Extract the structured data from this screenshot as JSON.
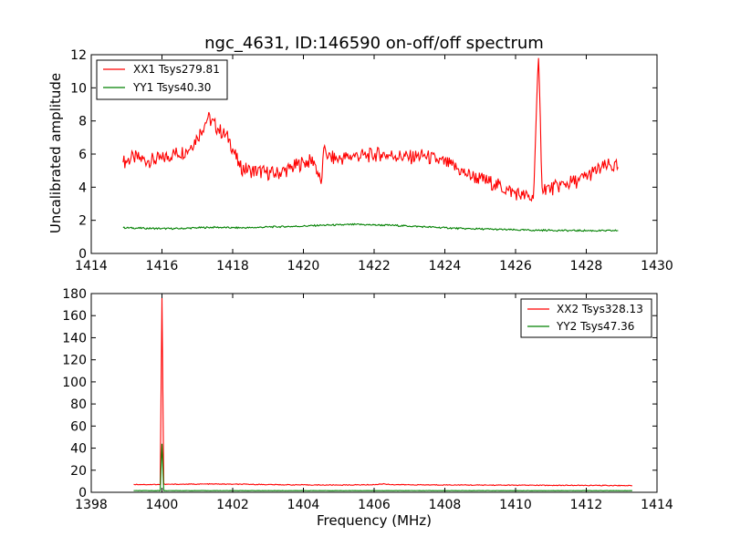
{
  "chart_data": [
    {
      "type": "line",
      "title": "ngc_4631, ID:146590 on-off/off spectrum",
      "xlabel": "",
      "ylabel": "Uncalibrated amplitude",
      "xlim": [
        1414,
        1430
      ],
      "ylim": [
        0,
        12
      ],
      "xticks": [
        "1414",
        "1416",
        "1418",
        "1420",
        "1422",
        "1424",
        "1426",
        "1428",
        "1430"
      ],
      "yticks": [
        "0",
        "2",
        "4",
        "6",
        "8",
        "10",
        "12"
      ],
      "legend_position": "top-left",
      "series": [
        {
          "name": "XX1 Tsys279.81",
          "color": "#ff0000",
          "x": [
            1414.9,
            1415.2,
            1415.6,
            1416.0,
            1416.3,
            1416.7,
            1417.0,
            1417.3,
            1417.6,
            1417.9,
            1418.2,
            1418.5,
            1418.9,
            1419.2,
            1419.6,
            1420.0,
            1420.3,
            1420.5,
            1420.6,
            1420.7,
            1421.0,
            1421.4,
            1421.8,
            1422.2,
            1422.6,
            1423.0,
            1423.4,
            1423.8,
            1424.2,
            1424.6,
            1425.0,
            1425.4,
            1425.8,
            1426.2,
            1426.5,
            1426.65,
            1426.75,
            1427.0,
            1427.4,
            1427.8,
            1428.2,
            1428.6,
            1428.9
          ],
          "y": [
            5.5,
            5.8,
            5.6,
            5.7,
            6.0,
            6.2,
            7.0,
            8.2,
            7.5,
            6.9,
            5.2,
            5.0,
            4.9,
            4.8,
            5.1,
            5.5,
            5.6,
            4.2,
            6.5,
            5.8,
            5.7,
            5.9,
            5.9,
            6.0,
            5.9,
            5.8,
            5.9,
            5.6,
            5.3,
            4.8,
            4.5,
            4.2,
            3.8,
            3.5,
            3.3,
            11.8,
            4.0,
            3.9,
            4.2,
            4.4,
            4.9,
            5.3,
            5.2
          ]
        },
        {
          "name": "YY1 Tsys40.30",
          "color": "#008000",
          "x": [
            1414.9,
            1415.5,
            1416.0,
            1416.5,
            1417.0,
            1417.5,
            1418.0,
            1418.5,
            1419.0,
            1419.5,
            1420.0,
            1420.5,
            1421.0,
            1421.5,
            1422.0,
            1422.5,
            1423.0,
            1423.5,
            1424.0,
            1424.5,
            1425.0,
            1425.5,
            1426.0,
            1426.5,
            1427.0,
            1427.5,
            1428.0,
            1428.5,
            1428.9
          ],
          "y": [
            1.55,
            1.52,
            1.5,
            1.5,
            1.55,
            1.58,
            1.55,
            1.55,
            1.6,
            1.62,
            1.65,
            1.7,
            1.72,
            1.75,
            1.72,
            1.7,
            1.65,
            1.6,
            1.55,
            1.5,
            1.48,
            1.45,
            1.42,
            1.4,
            1.4,
            1.38,
            1.38,
            1.37,
            1.38
          ]
        }
      ]
    },
    {
      "type": "line",
      "title": "",
      "xlabel": "Frequency (MHz)",
      "ylabel": "",
      "xlim": [
        1398,
        1414
      ],
      "ylim": [
        0,
        180
      ],
      "xticks": [
        "1398",
        "1400",
        "1402",
        "1404",
        "1406",
        "1408",
        "1410",
        "1412",
        "1414"
      ],
      "yticks": [
        "0",
        "20",
        "40",
        "60",
        "80",
        "100",
        "120",
        "140",
        "160",
        "180"
      ],
      "legend_position": "top-right",
      "series": [
        {
          "name": "XX2 Tsys328.13",
          "color": "#ff0000",
          "x": [
            1399.2,
            1399.6,
            1399.95,
            1400.0,
            1400.05,
            1400.5,
            1401.0,
            1401.5,
            1402.0,
            1402.5,
            1403.0,
            1403.5,
            1404.0,
            1404.5,
            1405.0,
            1405.5,
            1406.0,
            1406.25,
            1406.5,
            1407.0,
            1407.5,
            1408.0,
            1408.5,
            1409.0,
            1409.5,
            1410.0,
            1410.5,
            1411.0,
            1411.5,
            1412.0,
            1412.5,
            1413.0,
            1413.3
          ],
          "y": [
            7.2,
            7.0,
            7.1,
            176,
            7.2,
            7.3,
            7.4,
            7.5,
            7.3,
            7.2,
            7.0,
            6.8,
            6.7,
            6.6,
            6.6,
            6.7,
            6.9,
            7.6,
            7.0,
            6.8,
            6.7,
            6.7,
            6.6,
            6.5,
            6.5,
            6.4,
            6.4,
            6.3,
            6.3,
            6.2,
            6.2,
            6.1,
            6.1
          ]
        },
        {
          "name": "YY2 Tsys47.36",
          "color": "#008000",
          "x": [
            1399.2,
            1399.95,
            1400.0,
            1400.05,
            1401.0,
            1402.0,
            1403.0,
            1404.0,
            1405.0,
            1406.0,
            1407.0,
            1408.0,
            1409.0,
            1410.0,
            1411.0,
            1412.0,
            1413.3
          ],
          "y": [
            1.5,
            1.5,
            44,
            1.5,
            1.5,
            1.5,
            1.5,
            1.5,
            1.5,
            1.5,
            1.5,
            1.5,
            1.5,
            1.5,
            1.5,
            1.5,
            1.5
          ]
        }
      ]
    }
  ]
}
